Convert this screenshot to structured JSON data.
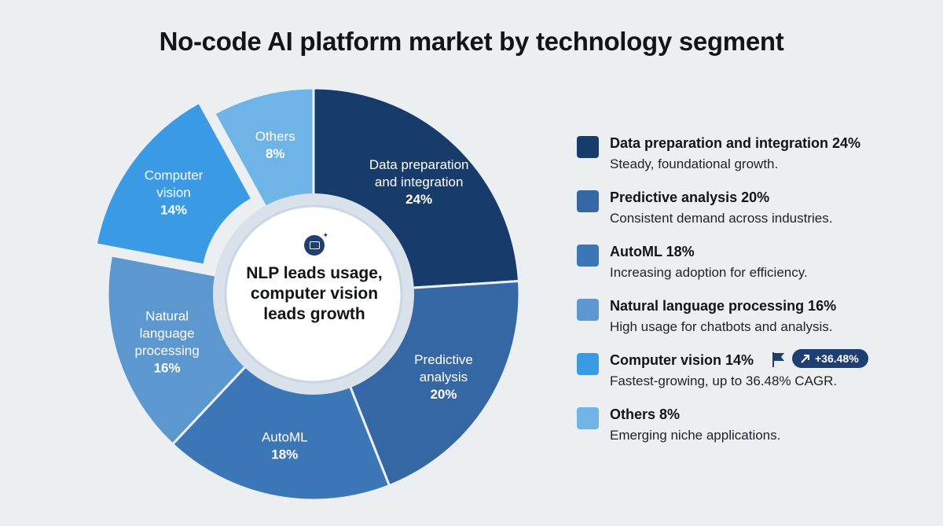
{
  "title": "No-code AI platform market by technology segment",
  "center_text": "NLP leads usage, computer vision leads growth",
  "colors": {
    "data_prep": "#173b6b",
    "predictive": "#3567a5",
    "automl": "#3b77b6",
    "nlp": "#5c98cf",
    "cv": "#3a9be4",
    "others": "#6fb4e6",
    "badge": "#1f3f73"
  },
  "chart_data": {
    "type": "pie",
    "style": "donut",
    "exploded_slice": "Computer vision",
    "slices": [
      {
        "key": "data_prep",
        "label_lines": [
          "Data preparation",
          "and integration"
        ],
        "pct_label": "24%",
        "value": 24
      },
      {
        "key": "predictive",
        "label_lines": [
          "Predictive",
          "analysis"
        ],
        "pct_label": "20%",
        "value": 20
      },
      {
        "key": "automl",
        "label_lines": [
          "AutoML"
        ],
        "pct_label": "18%",
        "value": 18
      },
      {
        "key": "nlp",
        "label_lines": [
          "Natural",
          "language",
          "processing"
        ],
        "pct_label": "16%",
        "value": 16
      },
      {
        "key": "cv",
        "label_lines": [
          "Computer",
          "vision"
        ],
        "pct_label": "14%",
        "value": 14
      },
      {
        "key": "others",
        "label_lines": [
          "Others"
        ],
        "pct_label": "8%",
        "value": 8
      }
    ]
  },
  "legend": [
    {
      "title": "Data preparation and integration 24%",
      "desc": "Steady, foundational growth.",
      "color_key": "data_prep"
    },
    {
      "title": "Predictive analysis 20%",
      "desc": "Consistent demand across industries.",
      "color_key": "predictive"
    },
    {
      "title": "AutoML 18%",
      "desc": "Increasing adoption for efficiency.",
      "color_key": "automl"
    },
    {
      "title": "Natural language processing 16%",
      "desc": "High usage for chatbots and analysis.",
      "color_key": "nlp"
    },
    {
      "title": "Computer vision 14%",
      "desc": "Fastest-growing, up to 36.48% CAGR.",
      "color_key": "cv",
      "badge": "+36.48%",
      "badge_icon": "trend-up-arrow-icon",
      "flag_icon": "flag-icon"
    },
    {
      "title": "Others 8%",
      "desc": "Emerging niche applications.",
      "color_key": "others"
    }
  ]
}
